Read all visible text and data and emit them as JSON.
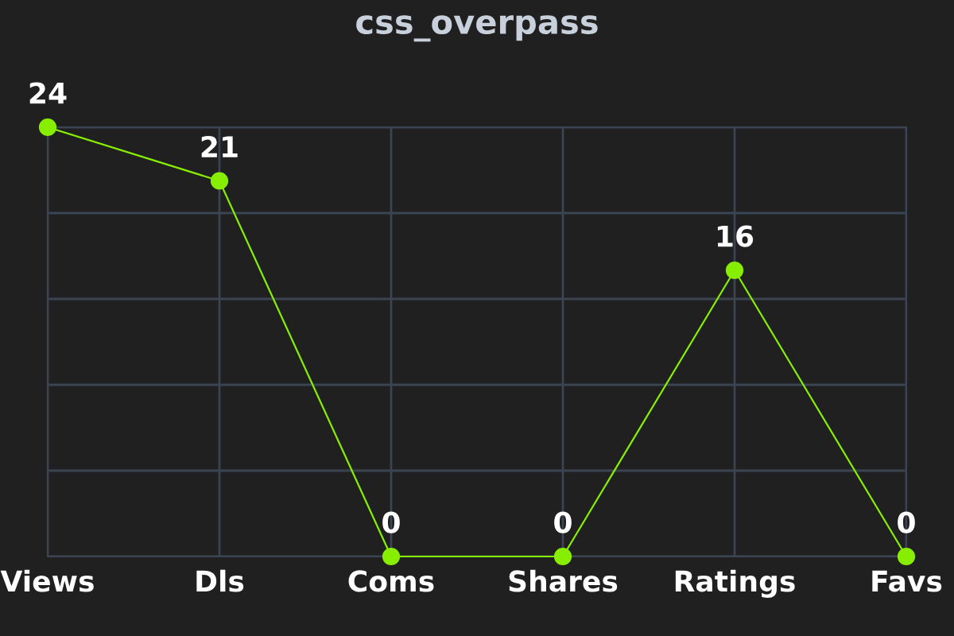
{
  "chart_data": {
    "type": "line",
    "title": "css_overpass",
    "categories": [
      "Views",
      "Dls",
      "Coms",
      "Shares",
      "Ratings",
      "Favs"
    ],
    "series": [
      {
        "color": "#88ee00",
        "values": [
          24,
          21,
          0,
          0,
          16,
          0
        ]
      }
    ],
    "ylim": [
      0,
      24
    ],
    "yticks": [
      {
        "value": 0,
        "label": null
      },
      {
        "value": 4.8,
        "label": null
      },
      {
        "value": 9.6,
        "label": null
      },
      {
        "value": 14.4,
        "label": null
      },
      {
        "value": 19.2,
        "label": null
      },
      {
        "value": 24,
        "label": null
      }
    ],
    "grid": true,
    "marker": "circle",
    "line_style": "solid",
    "data_labels": true,
    "tick_labels": "x"
  }
}
